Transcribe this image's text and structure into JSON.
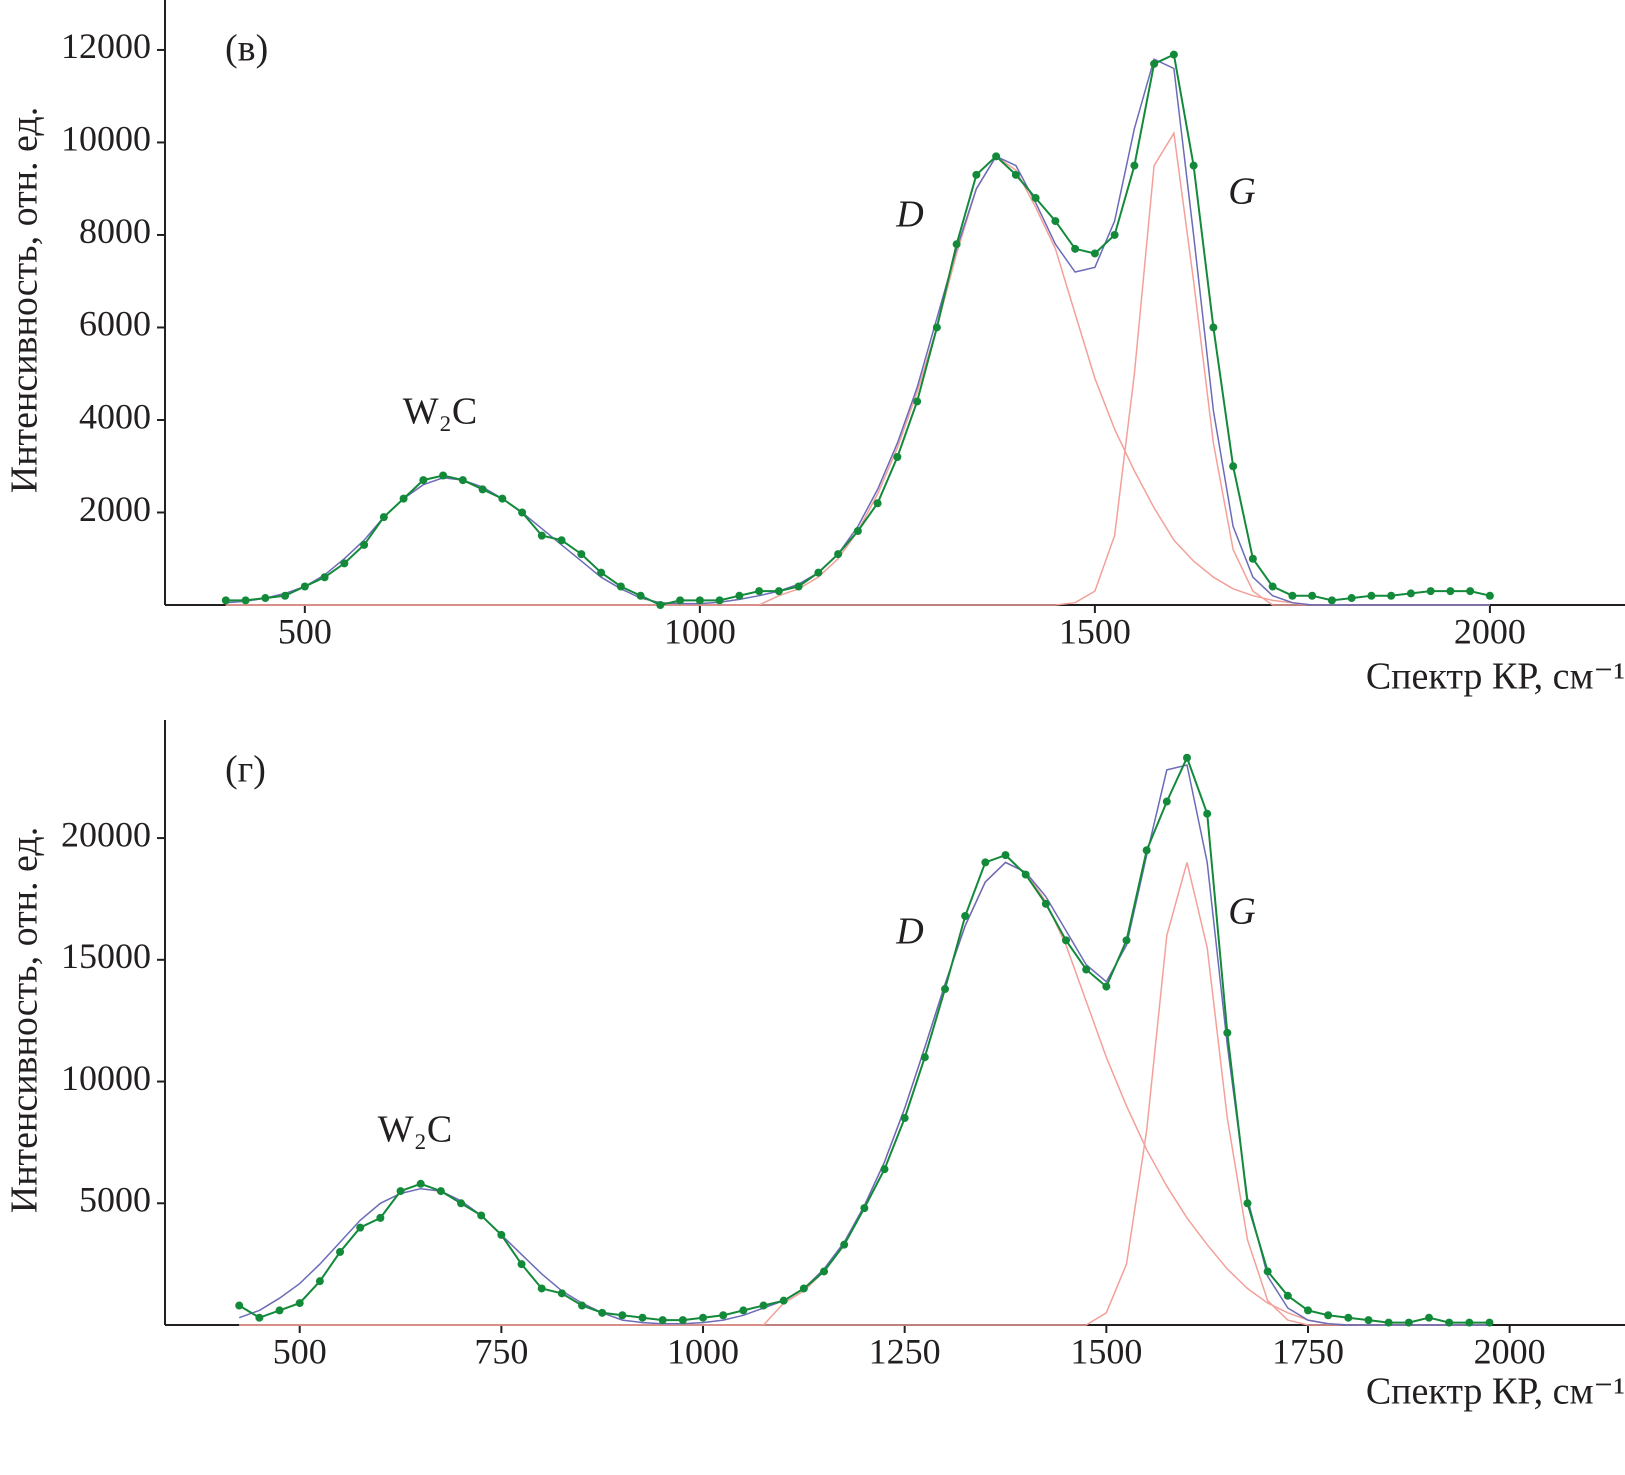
{
  "chart_data": [
    {
      "type": "line",
      "panel_label": "(в)",
      "annotations": [
        "W₂C",
        "D",
        "G"
      ],
      "x_label": "Спектр КР, см⁻¹",
      "y_label": "Интенсивность, отн. ед.",
      "xlim": [
        323,
        2171
      ],
      "ylim": [
        0,
        13080
      ],
      "xticks": [
        500,
        1000,
        1500,
        2000
      ],
      "yticks": [
        2000,
        4000,
        6000,
        8000,
        10000,
        12000
      ],
      "x": [
        400,
        425,
        450,
        475,
        500,
        525,
        550,
        575,
        600,
        625,
        650,
        675,
        700,
        725,
        750,
        775,
        800,
        825,
        850,
        875,
        900,
        925,
        950,
        975,
        1000,
        1025,
        1050,
        1075,
        1100,
        1125,
        1150,
        1175,
        1200,
        1225,
        1250,
        1275,
        1300,
        1325,
        1350,
        1375,
        1400,
        1425,
        1450,
        1475,
        1500,
        1525,
        1550,
        1575,
        1600,
        1625,
        1650,
        1675,
        1700,
        1725,
        1750,
        1775,
        1800,
        1825,
        1850,
        1875,
        1900,
        1925,
        1950,
        1975,
        2000
      ],
      "series": [
        {
          "color": "#138a3a",
          "marker": true,
          "values": [
            100,
            100,
            150,
            200,
            400,
            600,
            900,
            1300,
            1900,
            2300,
            2700,
            2800,
            2700,
            2500,
            2300,
            2000,
            1500,
            1400,
            1100,
            700,
            400,
            200,
            0,
            100,
            100,
            100,
            200,
            300,
            300,
            400,
            700,
            1100,
            1600,
            2200,
            3200,
            4400,
            6000,
            7800,
            9300,
            9700,
            9300,
            8800,
            8300,
            7700,
            7600,
            8000,
            9500,
            11700,
            11900,
            9500,
            6000,
            3000,
            1000,
            400,
            200,
            200,
            100,
            150,
            200,
            200,
            250,
            300,
            300,
            300,
            200
          ]
        },
        {
          "color": "#6b6bb8",
          "marker": false,
          "values": [
            50,
            80,
            150,
            250,
            400,
            650,
            1000,
            1400,
            1900,
            2300,
            2600,
            2750,
            2700,
            2550,
            2300,
            2000,
            1650,
            1300,
            950,
            600,
            350,
            150,
            50,
            30,
            30,
            60,
            120,
            200,
            300,
            450,
            700,
            1100,
            1700,
            2500,
            3500,
            4700,
            6200,
            7700,
            9000,
            9700,
            9500,
            8700,
            7800,
            7200,
            7300,
            8300,
            10300,
            11800,
            11600,
            8000,
            4200,
            1700,
            600,
            200,
            50,
            0,
            0,
            0,
            0,
            0,
            0,
            0,
            0,
            0,
            0
          ]
        },
        {
          "color": "#f4a09a",
          "marker": false,
          "values": [
            0,
            0,
            0,
            0,
            0,
            0,
            0,
            0,
            0,
            0,
            0,
            0,
            0,
            0,
            0,
            0,
            0,
            0,
            0,
            0,
            0,
            0,
            0,
            0,
            0,
            0,
            0,
            0,
            200,
            350,
            600,
            1000,
            1600,
            2400,
            3400,
            4600,
            6000,
            7600,
            9000,
            9700,
            9400,
            8600,
            7700,
            6300,
            4900,
            3800,
            2900,
            2100,
            1400,
            950,
            600,
            350,
            200,
            100,
            50,
            0,
            0,
            0,
            0,
            0,
            0,
            0,
            0,
            0,
            0
          ]
        },
        {
          "color": "#f4a09a",
          "marker": false,
          "values": [
            0,
            0,
            0,
            0,
            0,
            0,
            0,
            0,
            0,
            0,
            0,
            0,
            0,
            0,
            0,
            0,
            0,
            0,
            0,
            0,
            0,
            0,
            0,
            0,
            0,
            0,
            0,
            0,
            0,
            0,
            0,
            0,
            0,
            0,
            0,
            0,
            0,
            0,
            0,
            0,
            0,
            0,
            0,
            50,
            300,
            1500,
            5000,
            9500,
            10200,
            7000,
            3500,
            1200,
            300,
            0,
            0,
            0,
            0,
            0,
            0,
            0,
            0,
            0,
            0,
            0,
            0
          ]
        }
      ]
    },
    {
      "type": "line",
      "panel_label": "(г)",
      "annotations": [
        "W₂C",
        "D",
        "G"
      ],
      "x_label": "Спектр КР, см⁻¹",
      "y_label": "Интенсивность, отн. ед.",
      "xlim": [
        333,
        2143
      ],
      "ylim": [
        0,
        24850
      ],
      "xticks": [
        500,
        750,
        1000,
        1250,
        1500,
        1750,
        2000
      ],
      "yticks": [
        5000,
        10000,
        15000,
        20000
      ],
      "x": [
        425,
        450,
        475,
        500,
        525,
        550,
        575,
        600,
        625,
        650,
        675,
        700,
        725,
        750,
        775,
        800,
        825,
        850,
        875,
        900,
        925,
        950,
        975,
        1000,
        1025,
        1050,
        1075,
        1100,
        1125,
        1150,
        1175,
        1200,
        1225,
        1250,
        1275,
        1300,
        1325,
        1350,
        1375,
        1400,
        1425,
        1450,
        1475,
        1500,
        1525,
        1550,
        1575,
        1600,
        1625,
        1650,
        1675,
        1700,
        1725,
        1750,
        1775,
        1800,
        1825,
        1850,
        1875,
        1900,
        1925,
        1950,
        1975
      ],
      "series": [
        {
          "color": "#138a3a",
          "marker": true,
          "values": [
            800,
            300,
            600,
            900,
            1800,
            3000,
            4000,
            4400,
            5500,
            5800,
            5500,
            5000,
            4500,
            3700,
            2500,
            1500,
            1300,
            800,
            500,
            400,
            300,
            200,
            200,
            300,
            400,
            600,
            800,
            1000,
            1500,
            2200,
            3300,
            4800,
            6400,
            8500,
            11000,
            13800,
            16800,
            19000,
            19300,
            18500,
            17300,
            15800,
            14600,
            13900,
            15800,
            19500,
            21500,
            23300,
            21000,
            12000,
            5000,
            2200,
            1200,
            600,
            400,
            300,
            200,
            100,
            100,
            300,
            100,
            100,
            100
          ]
        },
        {
          "color": "#6b6bb8",
          "marker": false,
          "values": [
            300,
            600,
            1100,
            1700,
            2500,
            3400,
            4300,
            5000,
            5400,
            5600,
            5500,
            5100,
            4500,
            3700,
            2900,
            2100,
            1400,
            900,
            500,
            200,
            100,
            50,
            50,
            100,
            200,
            400,
            700,
            1000,
            1500,
            2300,
            3400,
            4900,
            6700,
            8900,
            11400,
            14000,
            16400,
            18200,
            19000,
            18600,
            17600,
            16200,
            14800,
            14100,
            15600,
            19300,
            22800,
            23000,
            19000,
            11500,
            5200,
            2000,
            700,
            200,
            50,
            0,
            0,
            0,
            0,
            0,
            0,
            0,
            0
          ]
        },
        {
          "color": "#f4a09a",
          "marker": false,
          "values": [
            0,
            0,
            0,
            0,
            0,
            0,
            0,
            0,
            0,
            0,
            0,
            0,
            0,
            0,
            0,
            0,
            0,
            0,
            0,
            0,
            0,
            0,
            0,
            0,
            0,
            0,
            0,
            900,
            1400,
            2200,
            3300,
            4900,
            6700,
            8900,
            11400,
            14000,
            16400,
            18200,
            19000,
            18600,
            17400,
            15600,
            13300,
            11000,
            9000,
            7200,
            5700,
            4400,
            3300,
            2300,
            1500,
            900,
            500,
            200,
            50,
            0,
            0,
            0,
            0,
            0,
            0,
            0,
            0
          ]
        },
        {
          "color": "#f4a09a",
          "marker": false,
          "values": [
            0,
            0,
            0,
            0,
            0,
            0,
            0,
            0,
            0,
            0,
            0,
            0,
            0,
            0,
            0,
            0,
            0,
            0,
            0,
            0,
            0,
            0,
            0,
            0,
            0,
            0,
            0,
            0,
            0,
            0,
            0,
            0,
            0,
            0,
            0,
            0,
            0,
            0,
            0,
            0,
            0,
            0,
            0,
            500,
            2500,
            8000,
            16000,
            19000,
            15500,
            8500,
            3500,
            1000,
            200,
            0,
            0,
            0,
            0,
            0,
            0,
            0,
            0,
            0,
            0
          ]
        }
      ]
    }
  ]
}
